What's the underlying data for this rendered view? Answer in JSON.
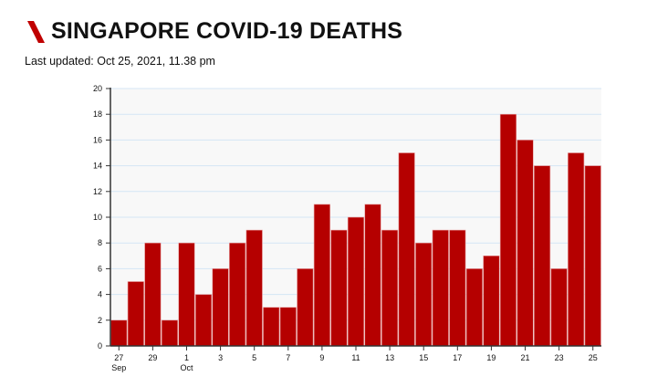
{
  "header": {
    "title": "SINGAPORE COVID-19 DEATHS",
    "last_updated": "Last updated: Oct 25, 2021, 11.38 pm",
    "accent_color": "#c00000"
  },
  "chart_data": {
    "type": "bar",
    "title": "SINGAPORE COVID-19 DEATHS",
    "xlabel": "",
    "ylabel": "",
    "ylim": [
      0,
      20
    ],
    "yticks": [
      0,
      2,
      4,
      6,
      8,
      10,
      12,
      14,
      16,
      18,
      20
    ],
    "grid": true,
    "bar_color": "#b50000",
    "categories": [
      "Sep 27",
      "Sep 28",
      "Sep 29",
      "Sep 30",
      "Oct 1",
      "Oct 2",
      "Oct 3",
      "Oct 4",
      "Oct 5",
      "Oct 6",
      "Oct 7",
      "Oct 8",
      "Oct 9",
      "Oct 10",
      "Oct 11",
      "Oct 12",
      "Oct 13",
      "Oct 14",
      "Oct 15",
      "Oct 16",
      "Oct 17",
      "Oct 18",
      "Oct 19",
      "Oct 20",
      "Oct 21",
      "Oct 22",
      "Oct 23",
      "Oct 24",
      "Oct 25"
    ],
    "values": [
      2,
      5,
      8,
      2,
      8,
      4,
      6,
      8,
      9,
      3,
      3,
      6,
      11,
      9,
      10,
      11,
      9,
      15,
      8,
      9,
      9,
      6,
      7,
      18,
      16,
      14,
      6,
      15,
      14
    ],
    "xticks": [
      {
        "index": 0,
        "label": "27",
        "sublabel": "Sep"
      },
      {
        "index": 2,
        "label": "29",
        "sublabel": ""
      },
      {
        "index": 4,
        "label": "1",
        "sublabel": "Oct"
      },
      {
        "index": 6,
        "label": "3",
        "sublabel": ""
      },
      {
        "index": 8,
        "label": "5",
        "sublabel": ""
      },
      {
        "index": 10,
        "label": "7",
        "sublabel": ""
      },
      {
        "index": 12,
        "label": "9",
        "sublabel": ""
      },
      {
        "index": 14,
        "label": "11",
        "sublabel": ""
      },
      {
        "index": 16,
        "label": "13",
        "sublabel": ""
      },
      {
        "index": 18,
        "label": "15",
        "sublabel": ""
      },
      {
        "index": 20,
        "label": "17",
        "sublabel": ""
      },
      {
        "index": 22,
        "label": "19",
        "sublabel": ""
      },
      {
        "index": 24,
        "label": "21",
        "sublabel": ""
      },
      {
        "index": 26,
        "label": "23",
        "sublabel": ""
      },
      {
        "index": 28,
        "label": "25",
        "sublabel": ""
      }
    ]
  }
}
